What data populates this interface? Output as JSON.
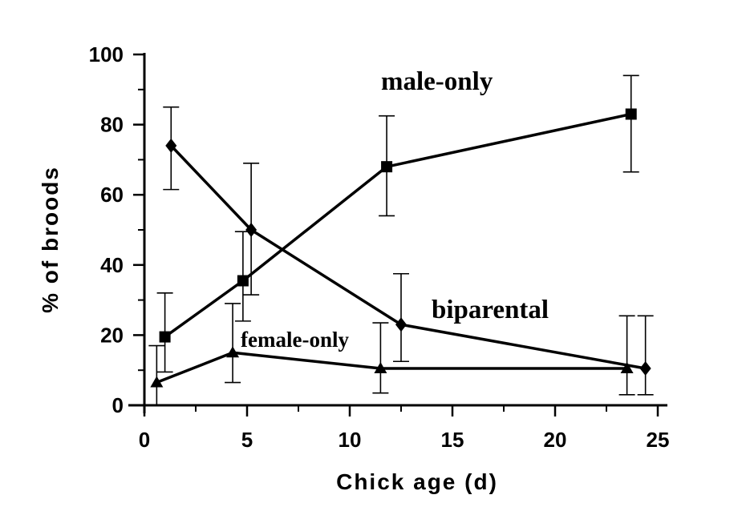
{
  "chart_data": {
    "type": "line",
    "xlabel": "Chick age (d)",
    "ylabel": "% of broods",
    "xlim": [
      0,
      25
    ],
    "ylim": [
      0,
      100
    ],
    "xticks": [
      "0",
      "5",
      "10",
      "15",
      "20",
      "25"
    ],
    "yticks": [
      "0",
      "20",
      "40",
      "60",
      "80",
      "100"
    ],
    "grid": false,
    "series": [
      {
        "name": "male-only",
        "marker": "square",
        "points": [
          {
            "x": 1.0,
            "y": 19.5,
            "lo": 9.5,
            "hi": 32.0
          },
          {
            "x": 4.8,
            "y": 35.5,
            "lo": 24.0,
            "hi": 49.5
          },
          {
            "x": 11.8,
            "y": 68.0,
            "lo": 54.0,
            "hi": 82.5
          },
          {
            "x": 23.7,
            "y": 83.0,
            "lo": 66.5,
            "hi": 94.0
          }
        ]
      },
      {
        "name": "biparental",
        "marker": "diamond",
        "points": [
          {
            "x": 1.3,
            "y": 74.0,
            "lo": 61.5,
            "hi": 85.0
          },
          {
            "x": 5.2,
            "y": 50.0,
            "lo": 31.5,
            "hi": 69.0
          },
          {
            "x": 12.5,
            "y": 23.0,
            "lo": 12.5,
            "hi": 37.5
          },
          {
            "x": 24.4,
            "y": 10.5,
            "lo": 3.0,
            "hi": 25.5
          }
        ]
      },
      {
        "name": "female-only",
        "marker": "triangle",
        "points": [
          {
            "x": 0.6,
            "y": 6.5,
            "lo": 0.0,
            "hi": 17.0
          },
          {
            "x": 4.3,
            "y": 15.0,
            "lo": 6.5,
            "hi": 29.0
          },
          {
            "x": 11.5,
            "y": 10.5,
            "lo": 3.5,
            "hi": 23.5
          },
          {
            "x": 23.5,
            "y": 10.5,
            "lo": 3.0,
            "hi": 25.5
          }
        ]
      }
    ],
    "annotations": [
      "male-only",
      "biparental",
      "female-only"
    ]
  }
}
